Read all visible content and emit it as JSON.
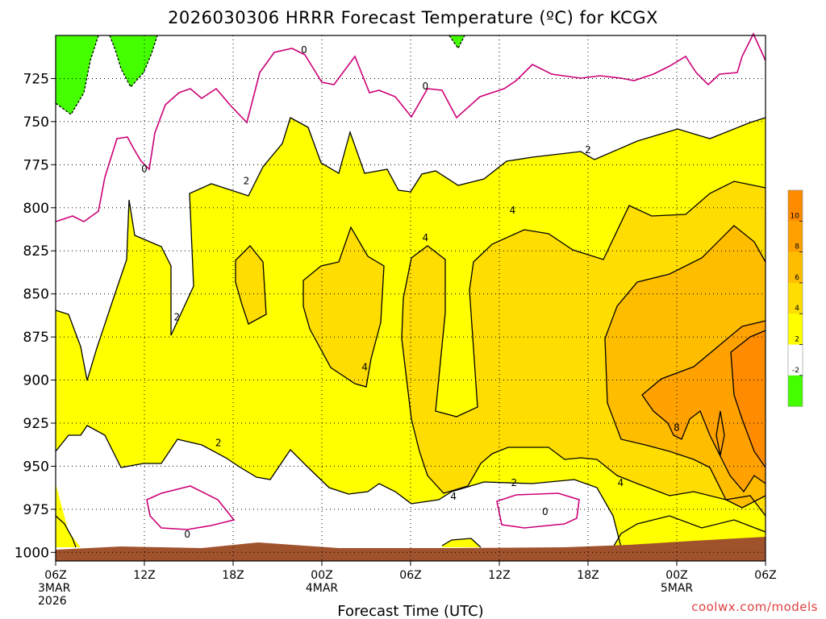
{
  "title": "2026030306 HRRR Forecast Temperature (ºC) for KCGX",
  "credit": "coolwx.com/models",
  "chart_data": {
    "type": "contour",
    "xlabel": "Forecast Time (UTC)",
    "ylabel": "",
    "y_axis": {
      "values": [
        725,
        750,
        775,
        800,
        825,
        850,
        875,
        900,
        925,
        950,
        975,
        1000
      ],
      "labels": [
        "725",
        "750",
        "775",
        "800",
        "825",
        "850",
        "875",
        "900",
        "925",
        "950",
        "975",
        "1000"
      ],
      "range": [
        700,
        1005
      ],
      "reversed": true,
      "grid": true
    },
    "x_axis": {
      "range_hours": [
        0,
        48
      ],
      "ticks": [
        {
          "hour": 0,
          "lines": [
            "06Z",
            "3MAR",
            "2026"
          ]
        },
        {
          "hour": 6,
          "lines": [
            "12Z"
          ]
        },
        {
          "hour": 12,
          "lines": [
            "18Z"
          ]
        },
        {
          "hour": 18,
          "lines": [
            "00Z",
            "4MAR"
          ]
        },
        {
          "hour": 24,
          "lines": [
            "06Z"
          ]
        },
        {
          "hour": 30,
          "lines": [
            "12Z"
          ]
        },
        {
          "hour": 36,
          "lines": [
            "18Z"
          ]
        },
        {
          "hour": 42,
          "lines": [
            "00Z",
            "5MAR"
          ]
        },
        {
          "hour": 48,
          "lines": [
            "06Z"
          ]
        }
      ],
      "grid": true
    },
    "contour_interval_c": 2,
    "contour_labels": [
      {
        "text": "0",
        "hour": 6.0,
        "p": 778
      },
      {
        "text": "0",
        "hour": 16.8,
        "p": 709
      },
      {
        "text": "0",
        "hour": 25.0,
        "p": 730
      },
      {
        "text": "2",
        "hour": 12.9,
        "p": 785
      },
      {
        "text": "2",
        "hour": 36.0,
        "p": 767
      },
      {
        "text": "2",
        "hour": 8.2,
        "p": 864
      },
      {
        "text": "2",
        "hour": 11.0,
        "p": 937
      },
      {
        "text": "4",
        "hour": 25.0,
        "p": 818
      },
      {
        "text": "4",
        "hour": 30.9,
        "p": 802
      },
      {
        "text": "4",
        "hour": 20.9,
        "p": 893
      },
      {
        "text": "4",
        "hour": 26.9,
        "p": 968
      },
      {
        "text": "2",
        "hour": 31.0,
        "p": 960
      },
      {
        "text": "4",
        "hour": 38.2,
        "p": 960
      },
      {
        "text": "0",
        "hour": 8.9,
        "p": 990
      },
      {
        "text": "0",
        "hour": 33.1,
        "p": 977
      },
      {
        "text": "8",
        "hour": 42.0,
        "p": 928
      }
    ],
    "colorbar": {
      "labels": [
        "10",
        "8",
        "6",
        "4",
        "2",
        "-2"
      ],
      "colors": [
        "#ff8c00",
        "#ffa200",
        "#ffbd00",
        "#ffdd00",
        "#ffff00",
        "#ffffff",
        "#44ff00"
      ]
    },
    "colors": {
      "le_minus2": "#44ff00",
      "zero_to_2": "#ffffff",
      "2_to_4": "#ffff00",
      "4_to_6": "#ffdd00",
      "6_to_8": "#ffbd00",
      "8_to_10": "#ffa200",
      "ge_10": "#ff8c00",
      "zero_line": "#cc0077",
      "terrain": "#a0522d"
    }
  }
}
